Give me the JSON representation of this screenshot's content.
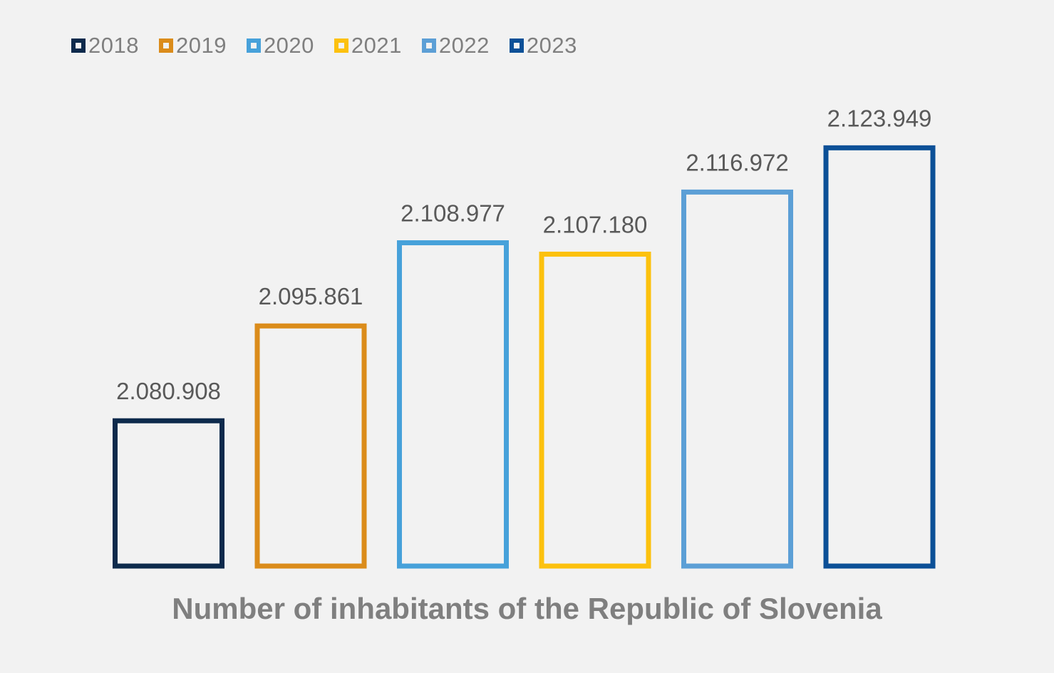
{
  "chart_data": {
    "type": "bar",
    "title": "Number of inhabitants of the Republic of Slovenia",
    "xlabel": "",
    "ylabel": "",
    "categories": [
      "2018",
      "2019",
      "2020",
      "2021",
      "2022",
      "2023"
    ],
    "values": [
      2080908,
      2095861,
      2108977,
      2107180,
      2116972,
      2123949
    ],
    "value_labels": [
      "2.080.908",
      "2.095.861",
      "2.108.977",
      "2.107.180",
      "2.116.972",
      "2.123.949"
    ],
    "colors": [
      "#0d2a4c",
      "#db8c1b",
      "#47a1da",
      "#fcc10e",
      "#5c9fd6",
      "#0c5097"
    ],
    "bar_style": "outline",
    "ylim": [
      2058000,
      2125000
    ],
    "grid": false,
    "legend_position": "top-left",
    "background": "#f2f2f2"
  }
}
